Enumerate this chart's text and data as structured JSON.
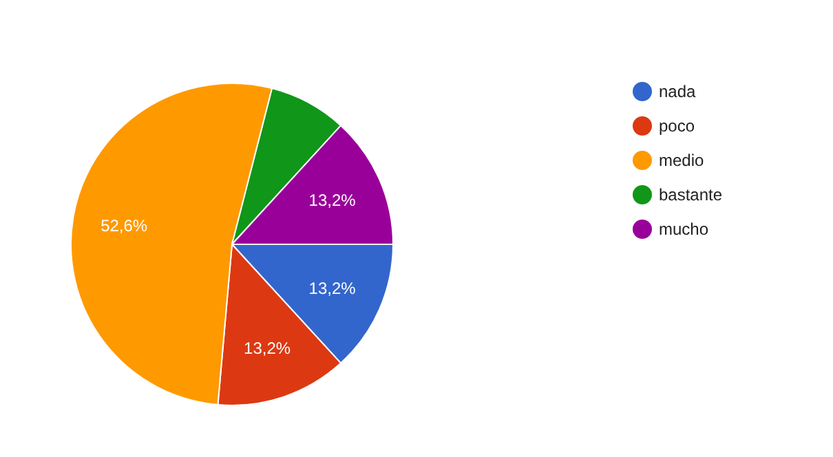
{
  "chart_data": {
    "type": "pie",
    "categories": [
      "nada",
      "poco",
      "medio",
      "bastante",
      "mucho"
    ],
    "values": [
      13.2,
      13.2,
      52.6,
      7.8,
      13.2
    ],
    "colors": [
      "#3366cc",
      "#dc3912",
      "#ff9900",
      "#109618",
      "#990099"
    ],
    "value_labels": [
      "13,2%",
      "13,2%",
      "52,6%",
      null,
      "13,2%"
    ],
    "legend": "right"
  }
}
